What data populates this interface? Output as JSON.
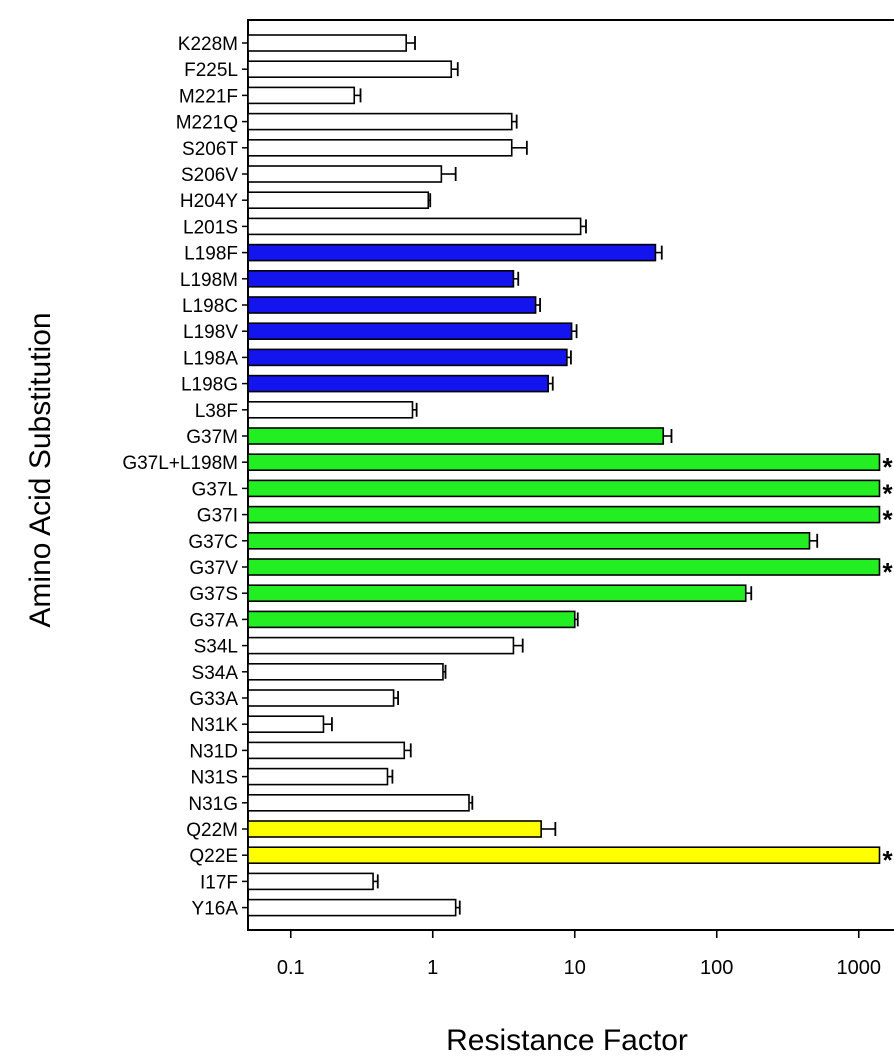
{
  "chart_data": {
    "type": "bar",
    "orientation": "horizontal",
    "xscale": "log",
    "xlim": [
      0.05,
      1500
    ],
    "xticks": [
      0.1,
      1,
      10,
      100,
      1000
    ],
    "xtick_labels": [
      "0.1",
      "1",
      "10",
      "100",
      "1000"
    ],
    "xlabel": "Resistance Factor",
    "ylabel": "Amino Acid Substitution",
    "grid": false,
    "legend": "none",
    "colors": {
      "white": "#ffffff",
      "blue": "#1414ee",
      "green": "#22ee22",
      "yellow": "#ffff00",
      "outline": "#000000"
    },
    "star_label": "*",
    "bars": [
      {
        "label": "K228M",
        "value": 0.65,
        "err": 0.1,
        "color": "white",
        "star": false
      },
      {
        "label": "F225L",
        "value": 1.35,
        "err": 0.15,
        "color": "white",
        "star": false
      },
      {
        "label": "M221F",
        "value": 0.28,
        "err": 0.03,
        "color": "white",
        "star": false
      },
      {
        "label": "M221Q",
        "value": 3.6,
        "err": 0.3,
        "color": "white",
        "star": false
      },
      {
        "label": "S206T",
        "value": 3.6,
        "err": 1.0,
        "color": "white",
        "star": false
      },
      {
        "label": "S206V",
        "value": 1.15,
        "err": 0.3,
        "color": "white",
        "star": false
      },
      {
        "label": "H204Y",
        "value": 0.93,
        "err": 0.03,
        "color": "white",
        "star": false
      },
      {
        "label": "L201S",
        "value": 11,
        "err": 1.0,
        "color": "white",
        "star": false
      },
      {
        "label": "L198F",
        "value": 37,
        "err": 4,
        "color": "blue",
        "star": false
      },
      {
        "label": "L198M",
        "value": 3.7,
        "err": 0.3,
        "color": "blue",
        "star": false
      },
      {
        "label": "L198C",
        "value": 5.3,
        "err": 0.4,
        "color": "blue",
        "star": false
      },
      {
        "label": "L198V",
        "value": 9.5,
        "err": 0.8,
        "color": "blue",
        "star": false
      },
      {
        "label": "L198A",
        "value": 8.8,
        "err": 0.6,
        "color": "blue",
        "star": false
      },
      {
        "label": "L198G",
        "value": 6.5,
        "err": 0.5,
        "color": "blue",
        "star": false
      },
      {
        "label": "L38F",
        "value": 0.72,
        "err": 0.05,
        "color": "white",
        "star": false
      },
      {
        "label": "G37M",
        "value": 42,
        "err": 6,
        "color": "green",
        "star": false
      },
      {
        "label": "G37L+L198M",
        "value": 1400,
        "err": 0,
        "color": "green",
        "star": true
      },
      {
        "label": "G37L",
        "value": 1400,
        "err": 0,
        "color": "green",
        "star": true
      },
      {
        "label": "G37I",
        "value": 1400,
        "err": 0,
        "color": "green",
        "star": true
      },
      {
        "label": "G37C",
        "value": 450,
        "err": 60,
        "color": "green",
        "star": false
      },
      {
        "label": "G37V",
        "value": 1400,
        "err": 0,
        "color": "green",
        "star": true
      },
      {
        "label": "G37S",
        "value": 160,
        "err": 15,
        "color": "green",
        "star": false
      },
      {
        "label": "G37A",
        "value": 10,
        "err": 0.5,
        "color": "green",
        "star": false
      },
      {
        "label": "S34L",
        "value": 3.7,
        "err": 0.6,
        "color": "white",
        "star": false
      },
      {
        "label": "S34A",
        "value": 1.18,
        "err": 0.05,
        "color": "white",
        "star": false
      },
      {
        "label": "G33A",
        "value": 0.53,
        "err": 0.04,
        "color": "white",
        "star": false
      },
      {
        "label": "N31K",
        "value": 0.17,
        "err": 0.025,
        "color": "white",
        "star": false
      },
      {
        "label": "N31D",
        "value": 0.63,
        "err": 0.07,
        "color": "white",
        "star": false
      },
      {
        "label": "N31S",
        "value": 0.48,
        "err": 0.04,
        "color": "white",
        "star": false
      },
      {
        "label": "N31G",
        "value": 1.8,
        "err": 0.1,
        "color": "white",
        "star": false
      },
      {
        "label": "Q22M",
        "value": 5.8,
        "err": 1.5,
        "color": "yellow",
        "star": false
      },
      {
        "label": "Q22E",
        "value": 1400,
        "err": 0,
        "color": "yellow",
        "star": true
      },
      {
        "label": "I17F",
        "value": 0.38,
        "err": 0.03,
        "color": "white",
        "star": false
      },
      {
        "label": "Y16A",
        "value": 1.45,
        "err": 0.1,
        "color": "white",
        "star": false
      }
    ]
  }
}
